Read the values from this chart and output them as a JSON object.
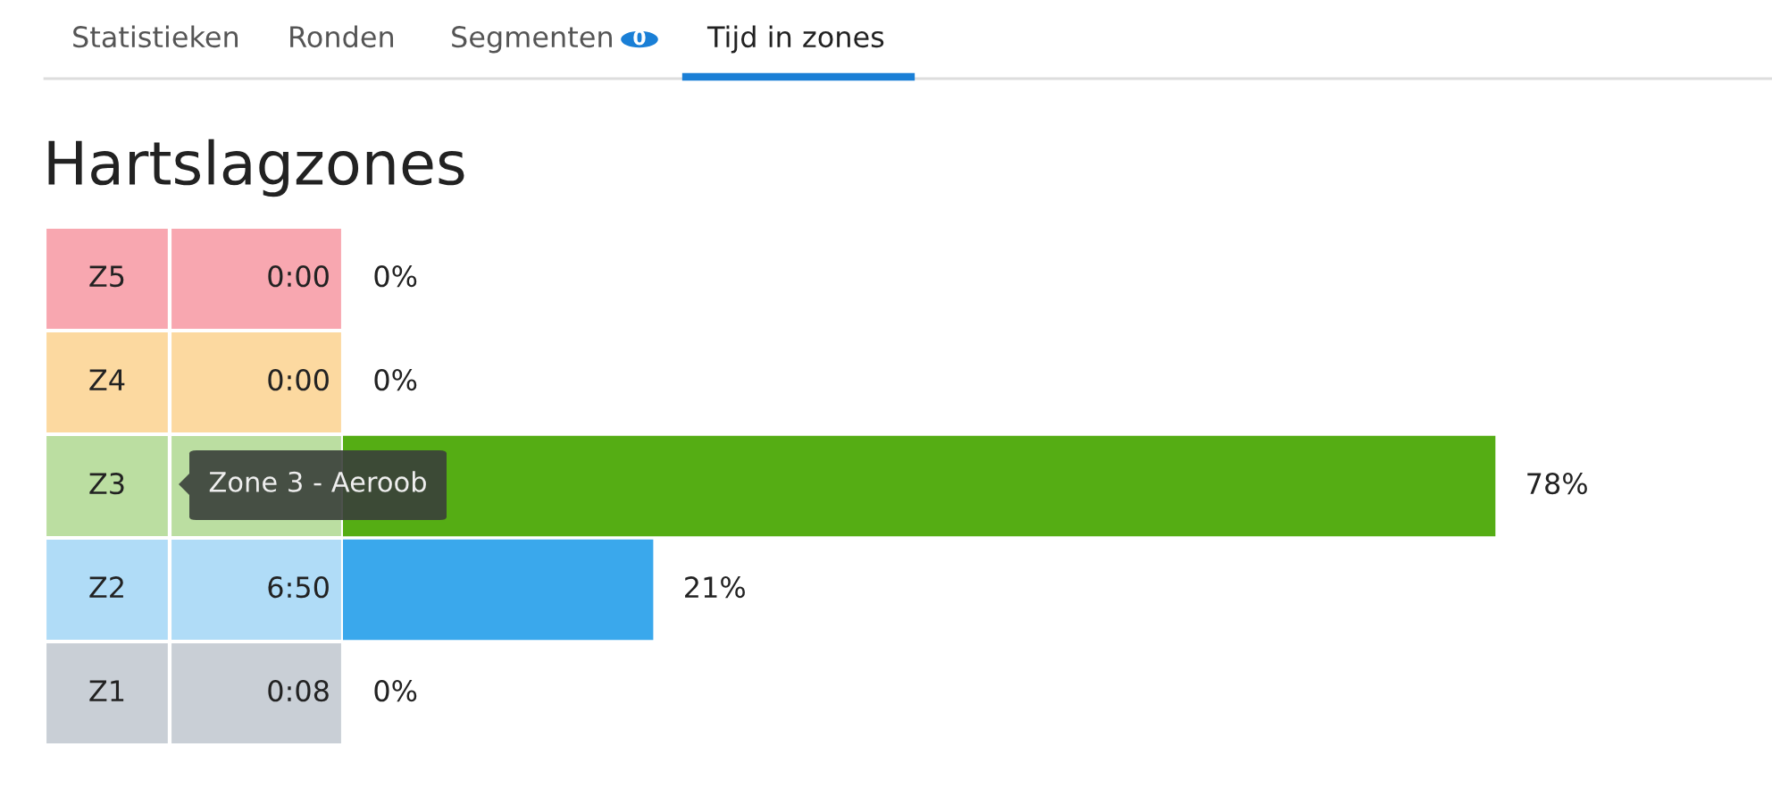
{
  "chart_data": {
    "type": "bar",
    "orientation": "horizontal",
    "title": "Hartslagzones",
    "categories": [
      "Z5",
      "Z4",
      "Z3",
      "Z2",
      "Z1"
    ],
    "values": [
      0,
      0,
      78,
      21,
      0
    ],
    "value_labels": [
      "0%",
      "0%",
      "78%",
      "21%",
      "0%"
    ],
    "colors": [
      "#f8a7b0",
      "#fcd9a0",
      "#55ad14",
      "#3aa8ec",
      "#c9cfd6"
    ],
    "grid": false,
    "legend": false,
    "tick_labels": false,
    "annotations": [
      "Statistieken",
      "Ronden",
      "Segmenten",
      "0",
      "Tijd in zones",
      "Zone 3 - Aeroob",
      "0:00",
      "0:00",
      "6:50",
      "0:08"
    ]
  }
}
